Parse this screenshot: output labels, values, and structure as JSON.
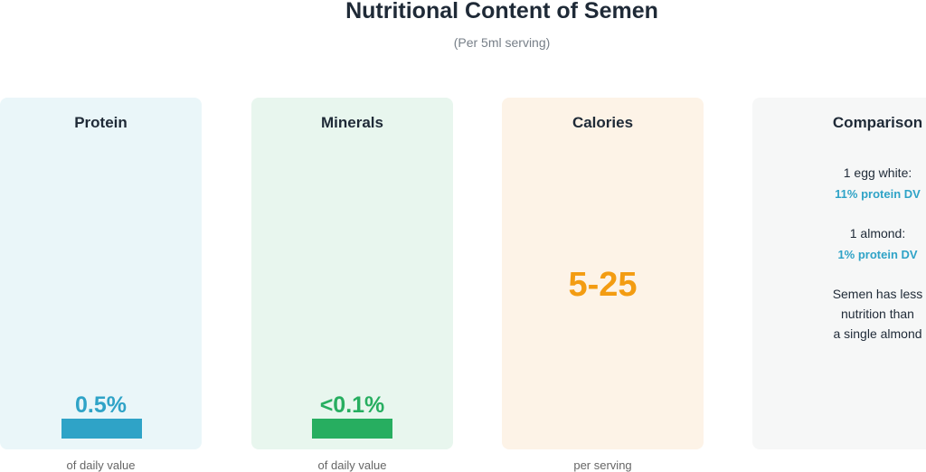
{
  "header": {
    "title": "Nutritional Content of Semen",
    "subtitle": "(Per 5ml serving)"
  },
  "cards": [
    {
      "title": "Protein",
      "value": "0.5%",
      "footnote": "of daily value"
    },
    {
      "title": "Minerals",
      "value": "<0.1%",
      "footnote": "of daily value"
    },
    {
      "title": "Calories",
      "value": "5-25",
      "footnote": "per serving"
    }
  ],
  "comparison": {
    "title": "Comparison",
    "items": [
      {
        "label": "1 egg white:",
        "value": "11% protein DV"
      },
      {
        "label": "1 almond:",
        "value": "1% protein DV"
      }
    ],
    "conclusion": [
      "Semen has less",
      "nutrition than",
      "a single almond"
    ]
  }
}
